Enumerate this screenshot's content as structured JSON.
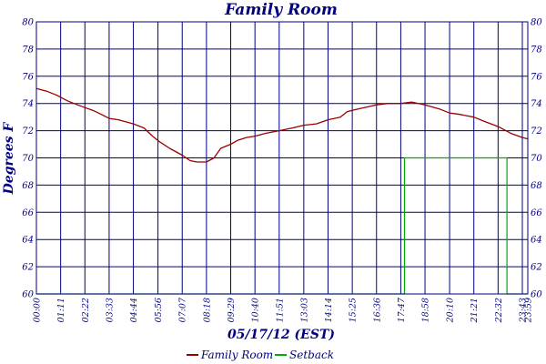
{
  "chart_data": {
    "type": "line",
    "title": "Family Room",
    "xlabel": "05/17/12 (EST)",
    "ylabel": "Degrees F",
    "ylim": [
      60,
      80
    ],
    "yticks": [
      60,
      62,
      64,
      66,
      68,
      70,
      72,
      74,
      76,
      78,
      80
    ],
    "xlim": [
      "00:00",
      "23:59"
    ],
    "xticks": [
      "00:00",
      "01:11",
      "02:22",
      "03:33",
      "04:44",
      "05:56",
      "07:07",
      "08:18",
      "09:29",
      "10:40",
      "11:51",
      "13:03",
      "14:14",
      "15:25",
      "16:36",
      "17:47",
      "18:58",
      "20:10",
      "21:21",
      "22:32",
      "23:43",
      "23:59"
    ],
    "grid": true,
    "legend_position": "bottom",
    "colors": {
      "grid": "#000080",
      "text": "#000080",
      "family_room": "#990000",
      "setback": "#00aa00"
    },
    "series": [
      {
        "name": "Family Room",
        "color": "#990000",
        "points": [
          [
            "00:00",
            75.1
          ],
          [
            "00:30",
            74.9
          ],
          [
            "01:00",
            74.6
          ],
          [
            "01:30",
            74.2
          ],
          [
            "02:00",
            73.9
          ],
          [
            "02:22",
            73.7
          ],
          [
            "02:45",
            73.5
          ],
          [
            "03:10",
            73.2
          ],
          [
            "03:33",
            72.9
          ],
          [
            "04:00",
            72.8
          ],
          [
            "04:44",
            72.5
          ],
          [
            "05:15",
            72.2
          ],
          [
            "05:40",
            71.6
          ],
          [
            "06:00",
            71.2
          ],
          [
            "06:30",
            70.7
          ],
          [
            "07:07",
            70.2
          ],
          [
            "07:30",
            69.8
          ],
          [
            "07:50",
            69.7
          ],
          [
            "08:18",
            69.7
          ],
          [
            "08:40",
            70.0
          ],
          [
            "09:00",
            70.7
          ],
          [
            "09:29",
            71.0
          ],
          [
            "09:50",
            71.3
          ],
          [
            "10:15",
            71.5
          ],
          [
            "10:40",
            71.6
          ],
          [
            "11:10",
            71.8
          ],
          [
            "11:51",
            72.0
          ],
          [
            "12:30",
            72.2
          ],
          [
            "13:03",
            72.4
          ],
          [
            "13:40",
            72.5
          ],
          [
            "14:14",
            72.8
          ],
          [
            "14:50",
            73.0
          ],
          [
            "15:10",
            73.4
          ],
          [
            "15:25",
            73.5
          ],
          [
            "16:00",
            73.7
          ],
          [
            "16:36",
            73.9
          ],
          [
            "17:10",
            74.0
          ],
          [
            "17:47",
            74.0
          ],
          [
            "18:20",
            74.1
          ],
          [
            "18:58",
            73.9
          ],
          [
            "19:40",
            73.6
          ],
          [
            "20:10",
            73.3
          ],
          [
            "20:40",
            73.2
          ],
          [
            "21:21",
            73.0
          ],
          [
            "21:50",
            72.7
          ],
          [
            "22:32",
            72.3
          ],
          [
            "23:10",
            71.8
          ],
          [
            "23:43",
            71.5
          ],
          [
            "23:59",
            71.4
          ]
        ]
      },
      {
        "name": "Setback",
        "color": "#00aa00",
        "points": [
          [
            "00:00",
            60
          ],
          [
            "17:58",
            60
          ],
          [
            "17:58",
            70
          ],
          [
            "22:58",
            70
          ],
          [
            "22:58",
            60
          ],
          [
            "23:59",
            60
          ]
        ]
      }
    ]
  }
}
